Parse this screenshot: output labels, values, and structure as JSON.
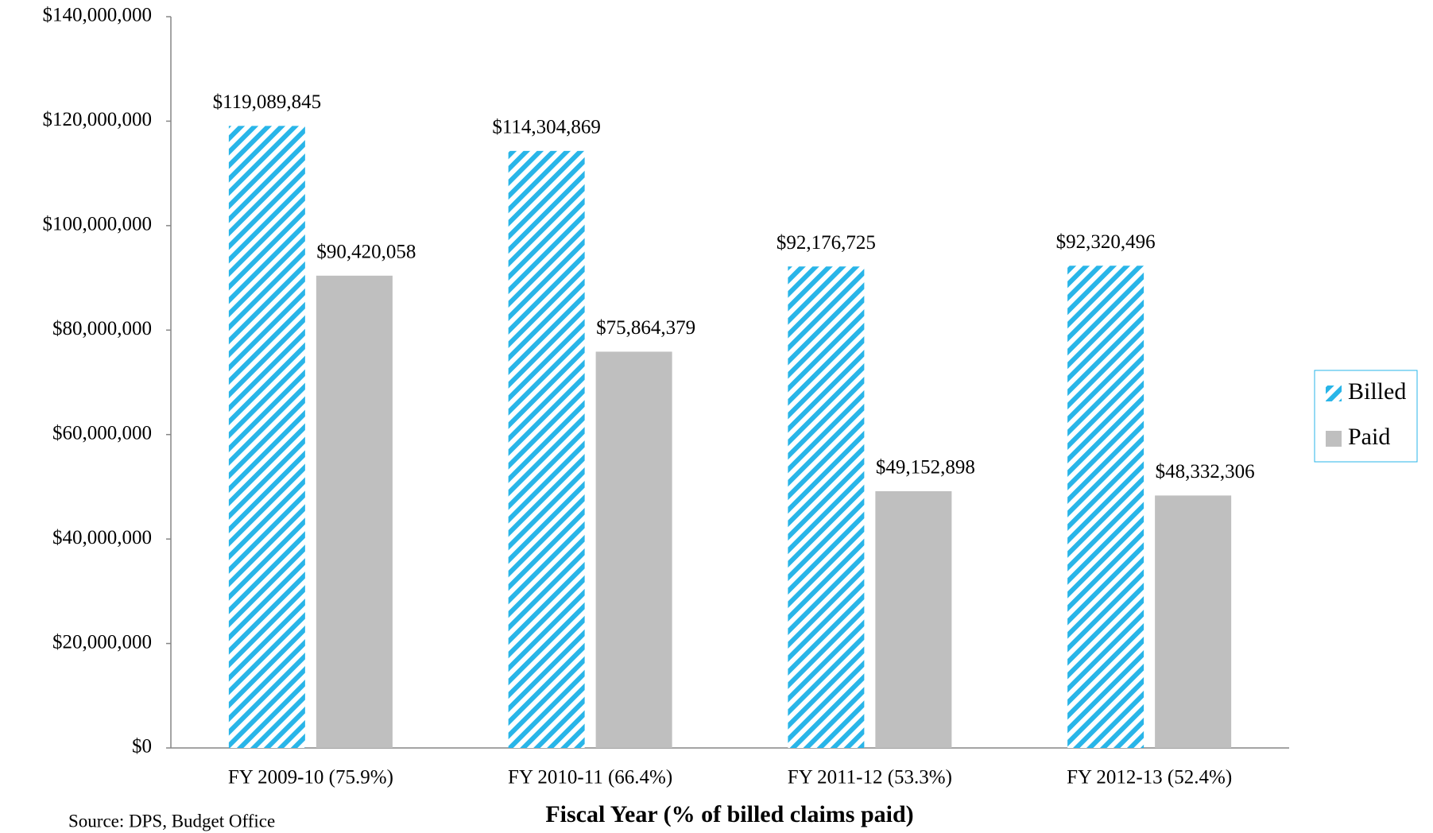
{
  "chart_data": {
    "type": "bar",
    "x_label": "Fiscal Year (% of billed claims paid)",
    "source": "Source: DPS, Budget Office",
    "categories": [
      "FY 2009-10 (75.9%)",
      "FY 2010-11 (66.4%)",
      "FY 2011-12 (53.3%)",
      "FY 2012-13 (52.4%)"
    ],
    "series": [
      {
        "name": "Billed",
        "color": "#29b5e8",
        "hatch": true,
        "values": [
          119089845,
          114304869,
          92176725,
          92320496
        ],
        "value_labels": [
          "$119,089,845",
          "$114,304,869",
          "$92,176,725",
          "$92,320,496"
        ]
      },
      {
        "name": "Paid",
        "color": "#bfbfbf",
        "hatch": false,
        "values": [
          90420058,
          75864379,
          49152898,
          48332306
        ],
        "value_labels": [
          "$90,420,058",
          "$75,864,379",
          "$49,152,898",
          "$48,332,306"
        ]
      }
    ],
    "ylim": [
      0,
      140000000
    ],
    "yticks": [
      {
        "value": 0,
        "label": "$0"
      },
      {
        "value": 20000000,
        "label": "$20,000,000"
      },
      {
        "value": 40000000,
        "label": "$40,000,000"
      },
      {
        "value": 60000000,
        "label": "$60,000,000"
      },
      {
        "value": 80000000,
        "label": "$80,000,000"
      },
      {
        "value": 100000000,
        "label": "$100,000,000"
      },
      {
        "value": 120000000,
        "label": "$120,000,000"
      },
      {
        "value": 140000000,
        "label": "$140,000,000"
      }
    ],
    "grid": false,
    "legend": "right"
  }
}
